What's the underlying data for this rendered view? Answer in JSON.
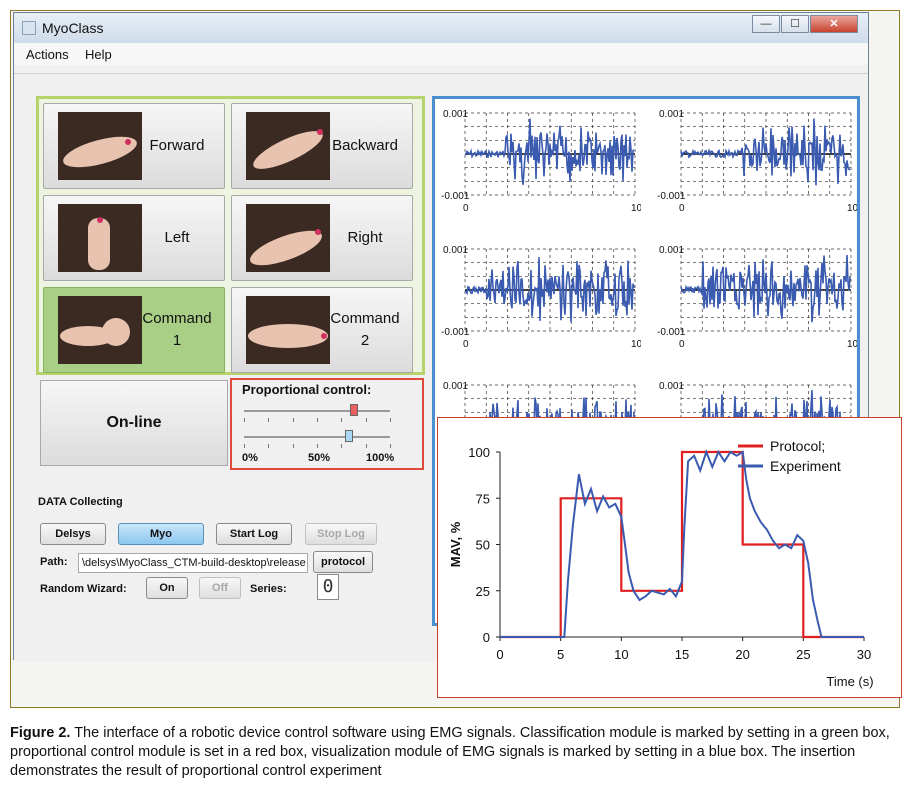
{
  "window": {
    "title": "MyoClass",
    "close_glyph": "✕",
    "min_glyph": "—",
    "max_glyph": "☐"
  },
  "menu": [
    "Actions",
    "Help"
  ],
  "classification": [
    {
      "label": "Forward",
      "label2": "",
      "active": false,
      "icon": "hand-forward-photo"
    },
    {
      "label": "Backward",
      "label2": "",
      "active": false,
      "icon": "hand-backward-photo"
    },
    {
      "label": "Left",
      "label2": "",
      "active": false,
      "icon": "hand-left-photo"
    },
    {
      "label": "Right",
      "label2": "",
      "active": false,
      "icon": "hand-right-photo"
    },
    {
      "label": "Command",
      "label2": "1",
      "active": true,
      "icon": "hand-fist-photo"
    },
    {
      "label": "Command",
      "label2": "2",
      "active": false,
      "icon": "hand-flat-photo"
    }
  ],
  "online_label": "On-line",
  "proportional": {
    "title": "Proportional control:",
    "slider1_level": 0.75,
    "slider2_level": 0.72,
    "scale": [
      "0%",
      "50%",
      "100%"
    ]
  },
  "data_collecting": {
    "title": "DATA Collecting",
    "buttons": [
      "Delsys",
      "Myo",
      "Start Log",
      "Stop Log"
    ],
    "path_label": "Path:",
    "path_value": "\\delsys\\MyoClass_CTM-build-desktop\\release",
    "protocol_label": "protocol",
    "random_label": "Random Wizard:",
    "on_label": "On",
    "off_label": "Off",
    "series_label": "Series:",
    "series_value": "0"
  },
  "emg_axis": {
    "ymax": "0.001",
    "ymin": "-0.001",
    "xmin": "0",
    "xmax": "10"
  },
  "chart_data": {
    "type": "line",
    "xlabel": "Time (s)",
    "ylabel": "MAV, %",
    "xlim": [
      0,
      30
    ],
    "ylim": [
      0,
      100
    ],
    "xticks": [
      0,
      5,
      10,
      15,
      20,
      25,
      30
    ],
    "yticks": [
      0,
      25,
      50,
      75,
      100
    ],
    "legend_position": "top-right",
    "series": [
      {
        "name": "Protocol;",
        "color": "#e02020",
        "x": [
          0,
          5,
          5,
          10,
          10,
          15,
          15,
          20,
          20,
          25,
          25,
          30
        ],
        "y": [
          0,
          0,
          75,
          75,
          25,
          25,
          100,
          100,
          50,
          50,
          0,
          0
        ]
      },
      {
        "name": "Experiment",
        "color": "#3a5bb0",
        "x": [
          0,
          5.3,
          5.6,
          6,
          6.5,
          7,
          7.5,
          8,
          8.5,
          9,
          9.5,
          10,
          10.3,
          10.6,
          11,
          11.5,
          12,
          12.5,
          13,
          13.5,
          14,
          14.5,
          15,
          15.2,
          15.5,
          16,
          16.5,
          17,
          17.5,
          18,
          18.5,
          19,
          19.5,
          20,
          20.3,
          20.6,
          21,
          21.5,
          22,
          22.5,
          23,
          23.5,
          24,
          24.5,
          25,
          25.4,
          25.8,
          26.2,
          26.5,
          30
        ],
        "y": [
          0,
          0,
          30,
          60,
          88,
          72,
          80,
          68,
          76,
          70,
          72,
          65,
          50,
          35,
          25,
          20,
          22,
          25,
          24,
          23,
          26,
          22,
          30,
          60,
          95,
          98,
          90,
          100,
          92,
          100,
          95,
          100,
          98,
          100,
          85,
          75,
          68,
          62,
          58,
          52,
          48,
          50,
          48,
          55,
          52,
          40,
          20,
          8,
          0,
          0
        ]
      }
    ]
  },
  "caption": {
    "label": "Figure 2.",
    "text": " The interface of a robotic device control software using EMG signals. Classification module is marked by setting in a green box, proportional control module is set in a red box, visualization module of EMG signals is marked by setting in a blue box. The insertion demonstrates the result of proportional control experiment"
  }
}
